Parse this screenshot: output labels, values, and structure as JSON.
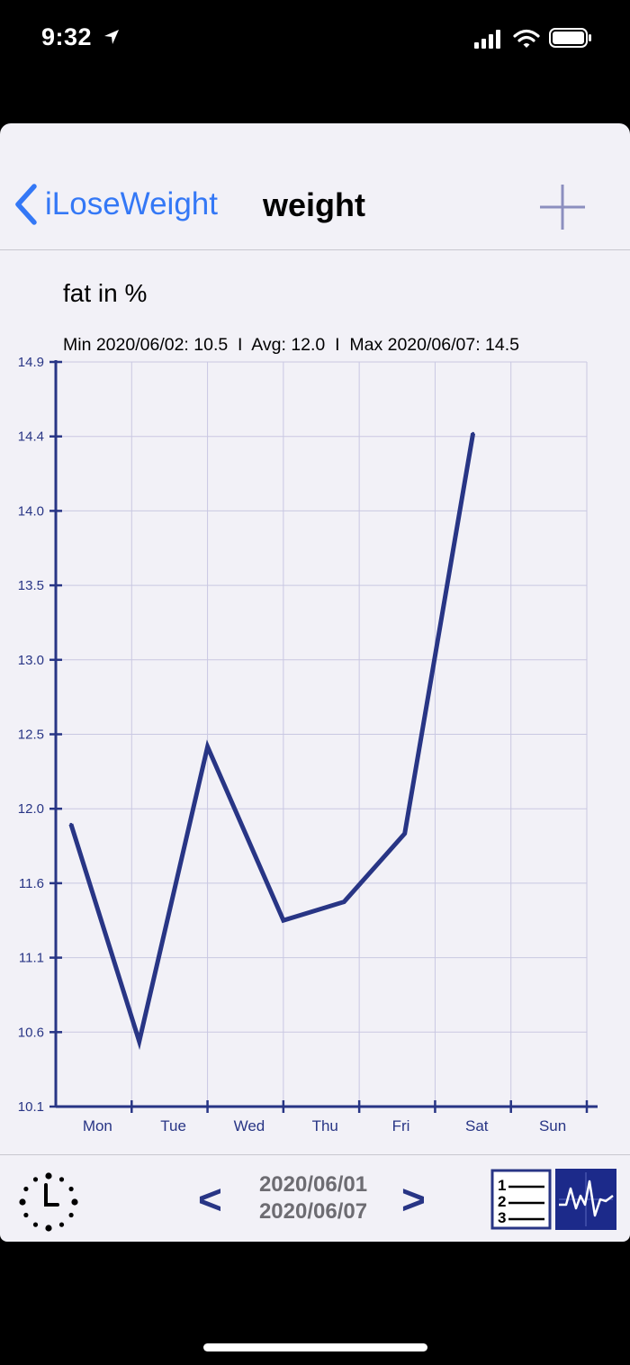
{
  "status": {
    "time": "9:32"
  },
  "nav": {
    "back_label": "iLoseWeight",
    "title": "weight"
  },
  "chart_data": {
    "type": "line",
    "title": "fat in %",
    "subtitle": "Min 2020/06/02: 10.5  I  Avg: 12.0  I  Max 2020/06/07: 14.5",
    "yticks": [
      "14.9",
      "14.4",
      "14.0",
      "13.5",
      "13.0",
      "12.5",
      "12.0",
      "11.6",
      "11.1",
      "10.6",
      "10.1"
    ],
    "ylim": [
      10.1,
      14.9
    ],
    "categories": [
      "Mon",
      "Tue",
      "Wed",
      "Thu",
      "Fri",
      "Sat",
      "Sun"
    ],
    "x": [
      0.2,
      1.1,
      2.0,
      3.0,
      3.8,
      4.6,
      5.5
    ],
    "values": [
      11.92,
      10.52,
      12.42,
      11.3,
      11.42,
      11.86,
      14.44
    ],
    "grid": true,
    "line_color": "#283585"
  },
  "footer": {
    "date_start": "2020/06/01",
    "date_end": "2020/06/07",
    "prev_label": "<",
    "next_label": ">",
    "list_icon_numbers": [
      "1",
      "2",
      "3"
    ]
  },
  "icons": {
    "back": "chevron-left-icon",
    "add": "plus-icon",
    "clock": "clock-icon",
    "list": "numbered-list-icon",
    "graph": "graph-icon"
  }
}
